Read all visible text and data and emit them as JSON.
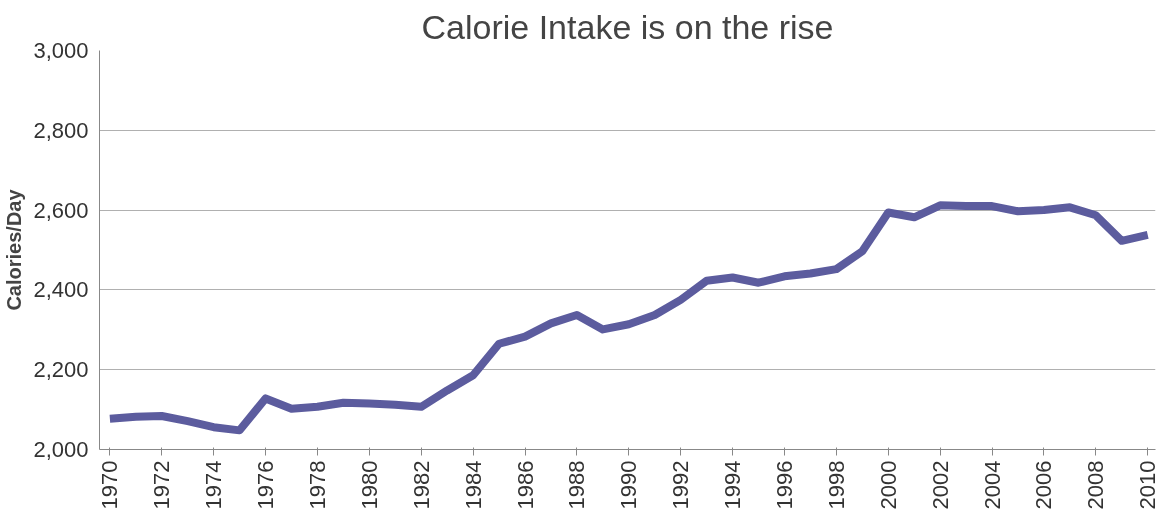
{
  "chart_data": {
    "type": "line",
    "title": "Calorie Intake is on the rise",
    "ylabel": "Calories/Day",
    "x": [
      1970,
      1971,
      1972,
      1973,
      1974,
      1975,
      1976,
      1977,
      1978,
      1979,
      1980,
      1981,
      1982,
      1983,
      1984,
      1985,
      1986,
      1987,
      1988,
      1989,
      1990,
      1991,
      1992,
      1993,
      1994,
      1995,
      1996,
      1997,
      1998,
      1999,
      2000,
      2001,
      2002,
      2003,
      2004,
      2005,
      2006,
      2007,
      2008,
      2009,
      2010
    ],
    "series": [
      {
        "color": "#5c5c9e",
        "values": [
          2077,
          2082,
          2084,
          2071,
          2056,
          2048,
          2128,
          2102,
          2107,
          2117,
          2115,
          2112,
          2107,
          2148,
          2186,
          2265,
          2283,
          2316,
          2337,
          2301,
          2314,
          2337,
          2375,
          2423,
          2431,
          2418,
          2434,
          2441,
          2452,
          2497,
          2594,
          2582,
          2612,
          2610,
          2610,
          2597,
          2600,
          2607,
          2587,
          2523,
          2538
        ]
      }
    ],
    "xlim": [
      1969.6,
      2010.3
    ],
    "xticks": [
      1970,
      1972,
      1974,
      1976,
      1978,
      1980,
      1982,
      1984,
      1986,
      1988,
      1990,
      1992,
      1994,
      1996,
      1998,
      2000,
      2002,
      2004,
      2006,
      2008,
      2010
    ],
    "ylim": [
      2000,
      3000
    ],
    "yticks": [
      {
        "value": 2000,
        "label": "2,000"
      },
      {
        "value": 2200,
        "label": "2,200"
      },
      {
        "value": 2400,
        "label": "2,400"
      },
      {
        "value": 2600,
        "label": "2,600"
      },
      {
        "value": 2800,
        "label": "2,800"
      },
      {
        "value": 3000,
        "label": "3,000"
      }
    ],
    "grid": "y",
    "marker": "none",
    "line_style": "solid"
  }
}
